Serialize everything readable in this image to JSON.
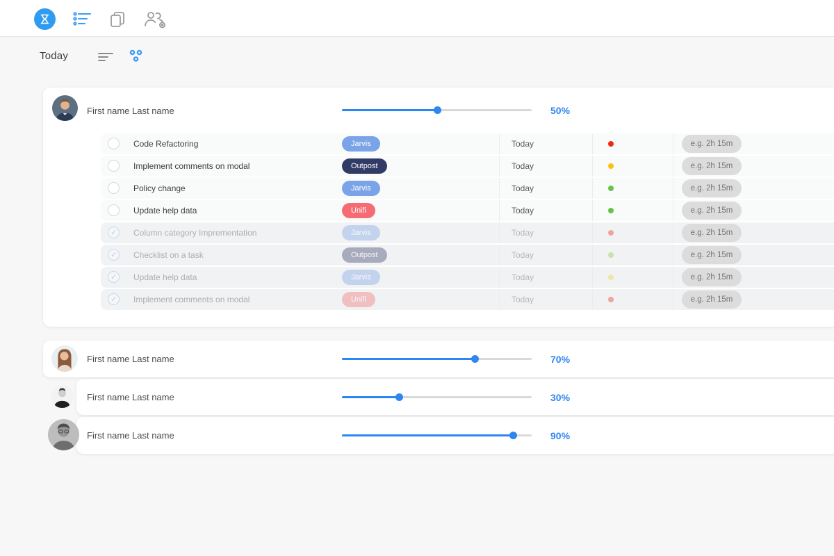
{
  "accent_color": "#2e86f0",
  "header": {
    "icons": [
      "app-logo-hourglass",
      "task-list",
      "copy-pages",
      "team-settings"
    ]
  },
  "toolbar": {
    "title": "Today",
    "icons": [
      "sort-lines",
      "group-by-dots"
    ]
  },
  "tag_colors": {
    "jarvis": "#7ba3e8",
    "outpost": "#323b66",
    "unifi": "#f56d72"
  },
  "status_colors": {
    "red": "#f22613",
    "yellow": "#fcc010",
    "green": "#67c14a"
  },
  "groups": [
    {
      "user": "First name Last name",
      "progress": 50,
      "progress_label": "50%",
      "tasks": [
        {
          "name": "Code Refactoring",
          "tag": "Jarvis",
          "tag_color": "#7ba3e8",
          "due": "Today",
          "dot_color": "#f22613",
          "time_placeholder": "e.g. 2h 15m",
          "done": false
        },
        {
          "name": "Implement comments on modal",
          "tag": "Outpost",
          "tag_color": "#323b66",
          "due": "Today",
          "dot_color": "#fcc010",
          "time_placeholder": "e.g. 2h 15m",
          "done": false
        },
        {
          "name": "Policy change",
          "tag": "Jarvis",
          "tag_color": "#7ba3e8",
          "due": "Today",
          "dot_color": "#67c14a",
          "time_placeholder": "e.g. 2h 15m",
          "done": false
        },
        {
          "name": "Update help data",
          "tag": "Unifi",
          "tag_color": "#f56d72",
          "due": "Today",
          "dot_color": "#67c14a",
          "time_placeholder": "e.g. 2h 15m",
          "done": false
        },
        {
          "name": "Column category Imprementation",
          "tag": "Jarvis",
          "tag_color": "#7ba3e8",
          "due": "Today",
          "dot_color": "#f22613",
          "time_placeholder": "e.g. 2h 15m",
          "done": true
        },
        {
          "name": "Checklist on a task",
          "tag": "Outpost",
          "tag_color": "#323b66",
          "due": "Today",
          "dot_color": "#8bc34a",
          "time_placeholder": "e.g. 2h 15m",
          "done": true
        },
        {
          "name": "Update help data",
          "tag": "Jarvis",
          "tag_color": "#7ba3e8",
          "due": "Today",
          "dot_color": "#f0d428",
          "time_placeholder": "e.g. 2h 15m",
          "done": true
        },
        {
          "name": "Implement comments on modal",
          "tag": "Unifi",
          "tag_color": "#f56d72",
          "due": "Today",
          "dot_color": "#f22613",
          "time_placeholder": "e.g. 2h 15m",
          "done": true
        }
      ]
    },
    {
      "user": "First name Last name",
      "progress": 70,
      "progress_label": "70%",
      "tasks": []
    },
    {
      "user": "First name Last name",
      "progress": 30,
      "progress_label": "30%",
      "tasks": []
    },
    {
      "user": "First name Last name",
      "progress": 90,
      "progress_label": "90%",
      "tasks": []
    }
  ]
}
